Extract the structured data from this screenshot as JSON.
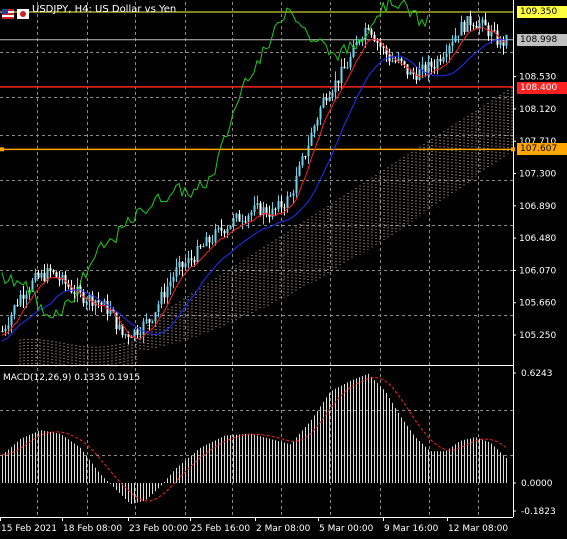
{
  "header": {
    "title": "USDJPY, H4:  US Dollar vs Yen",
    "flag_icons": [
      "us-flag-icon",
      "japan-flag-icon"
    ]
  },
  "price_axis": {
    "ticks": [
      "109.350",
      "108.998",
      "108.530",
      "108.400",
      "108.120",
      "107.710",
      "107.607",
      "107.300",
      "106.890",
      "106.480",
      "106.070",
      "105.660",
      "105.250"
    ]
  },
  "price_tags": {
    "high": "109.350",
    "current": "108.998",
    "red_level": "108.400",
    "orange_level": "107.607"
  },
  "macd": {
    "label": "MACD(12,26,9) 0.1335 0.1915",
    "ticks": [
      "0.6243",
      "0.0000",
      "-0.1823"
    ]
  },
  "time_axis": {
    "labels": [
      "15 Feb 2021",
      "18 Feb 08:00",
      "23 Feb 00:00",
      "25 Feb 16:00",
      "2 Mar 08:00",
      "5 Mar 00:00",
      "9 Mar 16:00",
      "12 Mar 08:00"
    ]
  },
  "colors": {
    "background": "#000000",
    "grid": "#8c8c8c",
    "bull_candle": "#6fd2e8",
    "bear_candle": "#ffffff",
    "tenkan": "#ff2020",
    "kijun": "#2030ff",
    "chikou": "#1dcc1d",
    "cloud": "#f5c8a8",
    "high_line": "#ffff40",
    "red_line": "#ff2020",
    "orange_line": "#ffa500",
    "macd_hist": "#dcdcdc",
    "macd_signal": "#ff2020"
  }
}
